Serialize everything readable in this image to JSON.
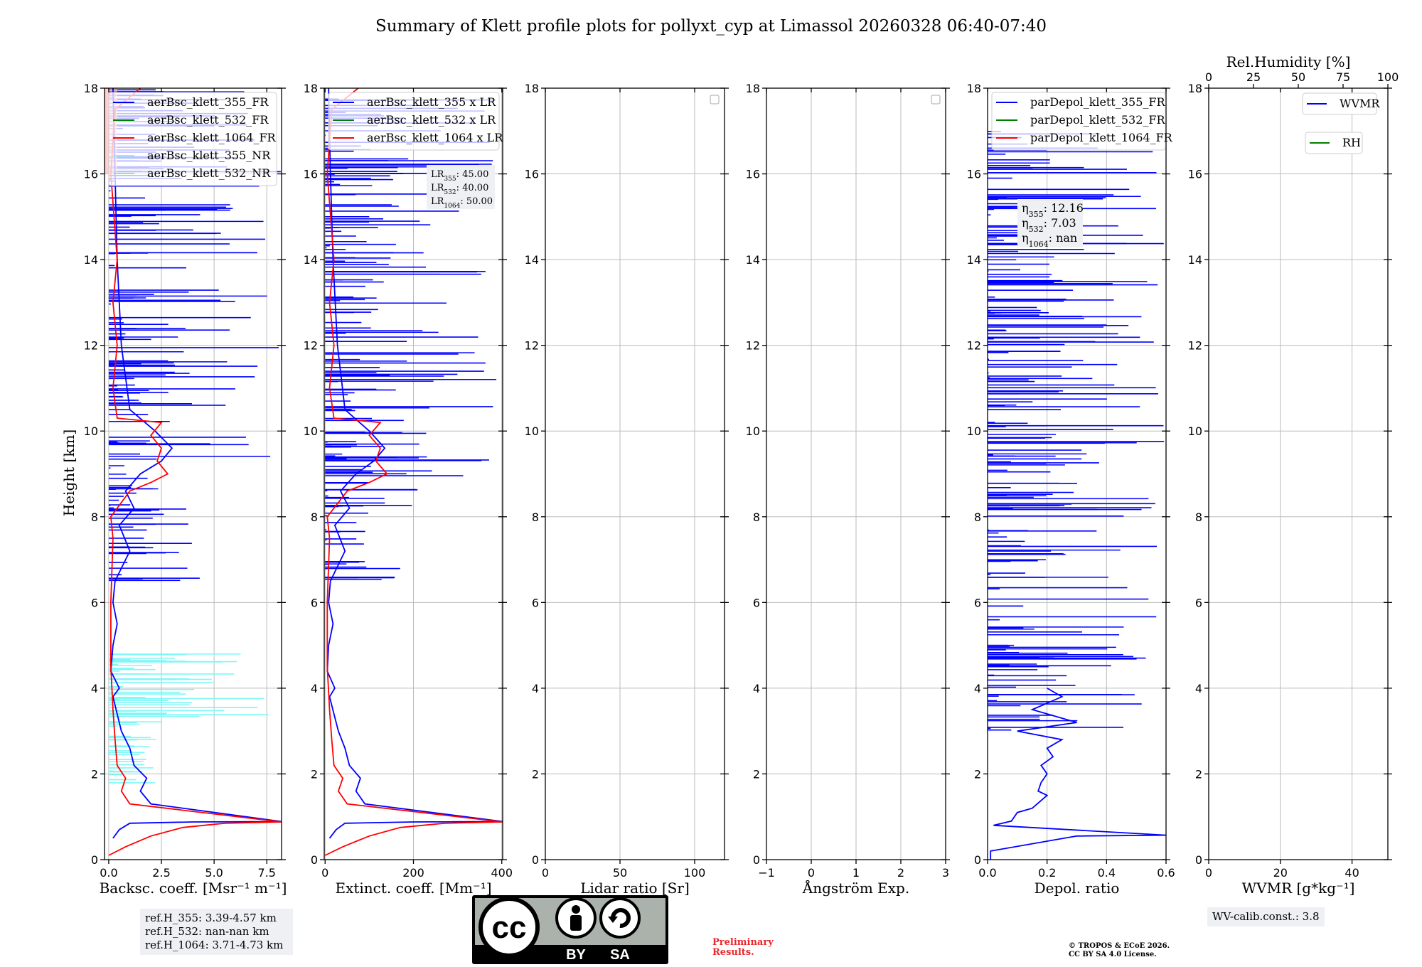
{
  "title": "Summary of Klett profile plots for pollyxt_cyp at Limassol 20260328 06:40-07:40",
  "colors": {
    "blue": "#0000ff",
    "green": "#008000",
    "red": "#ff0000",
    "cyan": "#7ff7f7",
    "lightgreen": "#90ee90"
  },
  "chart_data": [
    {
      "type": "line",
      "name": "backscatter",
      "xlabel": "Backsc. coeff. [Msr⁻¹ m⁻¹]",
      "ylabel": "Height [km]",
      "xlim": [
        -0.2,
        8.2
      ],
      "ylim": [
        0,
        18
      ],
      "xticks": [
        0,
        2.5,
        5,
        7.5
      ],
      "xticklabels": [
        "0.0",
        "2.5",
        "5.0",
        "7.5"
      ],
      "yticks": [
        0,
        2,
        4,
        6,
        8,
        10,
        12,
        14,
        16,
        18
      ],
      "legend": [
        "aerBsc_klett_355_FR",
        "aerBsc_klett_532_FR",
        "aerBsc_klett_1064_FR",
        "aerBsc_klett_355_NR",
        "aerBsc_klett_532_NR"
      ],
      "series": [
        {
          "name": "aerBsc_klett_355_FR",
          "color": "blue",
          "points": [
            [
              0.2,
              0.5
            ],
            [
              0.5,
              0.7
            ],
            [
              1.0,
              0.85
            ],
            [
              4.0,
              0.88
            ],
            [
              8.2,
              0.89
            ],
            [
              2.0,
              1.3
            ],
            [
              1.5,
              1.6
            ],
            [
              1.8,
              1.9
            ],
            [
              1.2,
              2.2
            ],
            [
              1.0,
              2.6
            ],
            [
              0.6,
              3.0
            ],
            [
              0.4,
              3.4
            ],
            [
              0.2,
              3.8
            ],
            [
              0.5,
              4.0
            ],
            [
              0.1,
              4.4
            ],
            [
              0.2,
              5.0
            ],
            [
              0.4,
              5.5
            ],
            [
              0.2,
              6.0
            ],
            [
              0.3,
              6.5
            ],
            [
              1.0,
              7.2
            ],
            [
              0.5,
              7.8
            ],
            [
              1.2,
              8.2
            ],
            [
              0.8,
              8.6
            ],
            [
              1.5,
              9.0
            ],
            [
              2.5,
              9.3
            ],
            [
              3.0,
              9.6
            ],
            [
              2.2,
              10.0
            ],
            [
              1.0,
              10.5
            ],
            [
              0.6,
              12.0
            ],
            [
              0.4,
              14.0
            ],
            [
              0.3,
              16.0
            ],
            [
              0.2,
              18.0
            ]
          ]
        },
        {
          "name": "aerBsc_klett_1064_FR",
          "color": "red",
          "points": [
            [
              0.0,
              0.1
            ],
            [
              0.8,
              0.3
            ],
            [
              2.0,
              0.55
            ],
            [
              3.5,
              0.75
            ],
            [
              5.5,
              0.85
            ],
            [
              8.2,
              0.88
            ],
            [
              1.0,
              1.3
            ],
            [
              0.6,
              1.6
            ],
            [
              0.8,
              1.9
            ],
            [
              0.4,
              2.2
            ],
            [
              0.3,
              2.8
            ],
            [
              0.2,
              3.5
            ],
            [
              0.1,
              4.5
            ],
            [
              0.1,
              6.0
            ],
            [
              0.2,
              7.5
            ],
            [
              0.1,
              8.0
            ],
            [
              1.0,
              8.6
            ],
            [
              2.0,
              8.8
            ],
            [
              2.8,
              9.0
            ],
            [
              2.3,
              9.3
            ],
            [
              2.5,
              9.6
            ],
            [
              2.0,
              9.9
            ],
            [
              2.5,
              10.2
            ],
            [
              0.4,
              10.3
            ],
            [
              0.2,
              11.0
            ],
            [
              0.4,
              12.0
            ],
            [
              0.2,
              13.0
            ],
            [
              0.4,
              14.0
            ],
            [
              0.1,
              16.0
            ],
            [
              0.3,
              17.5
            ],
            [
              1.5,
              18.0
            ]
          ]
        }
      ]
    },
    {
      "type": "line",
      "name": "extinction",
      "xlabel": "Extinct. coeff. [Mm⁻¹]",
      "xlim": [
        -2,
        402
      ],
      "ylim": [
        0,
        18
      ],
      "xticks": [
        0,
        200,
        400
      ],
      "xticklabels": [
        "0",
        "200",
        "400"
      ],
      "yticks": [
        0,
        2,
        4,
        6,
        8,
        10,
        12,
        14,
        16,
        18
      ],
      "legend": [
        "aerBsc_klett_355 x LR",
        "aerBsc_klett_532 x LR",
        "aerBsc_klett_1064 x LR"
      ],
      "lidar_ratios": [
        {
          "label": "LR",
          "sub": "355",
          "value": ": 45.00"
        },
        {
          "label": "LR",
          "sub": "532",
          "value": ": 40.00"
        },
        {
          "label": "LR",
          "sub": "1064",
          "value": ": 50.00"
        }
      ],
      "series": [
        {
          "name": "aerBsc_klett_355 x LR",
          "color": "blue",
          "points": [
            [
              10,
              0.5
            ],
            [
              25,
              0.7
            ],
            [
              45,
              0.85
            ],
            [
              200,
              0.88
            ],
            [
              402,
              0.89
            ],
            [
              90,
              1.3
            ],
            [
              70,
              1.6
            ],
            [
              80,
              1.9
            ],
            [
              55,
              2.2
            ],
            [
              45,
              2.6
            ],
            [
              30,
              3.0
            ],
            [
              20,
              3.4
            ],
            [
              10,
              3.8
            ],
            [
              22,
              4.0
            ],
            [
              5,
              4.4
            ],
            [
              8,
              5.0
            ],
            [
              18,
              5.5
            ],
            [
              8,
              6.0
            ],
            [
              12,
              6.5
            ],
            [
              45,
              7.2
            ],
            [
              22,
              7.8
            ],
            [
              55,
              8.2
            ],
            [
              35,
              8.6
            ],
            [
              70,
              9.0
            ],
            [
              110,
              9.3
            ],
            [
              135,
              9.6
            ],
            [
              100,
              10.0
            ],
            [
              45,
              10.5
            ],
            [
              28,
              12.0
            ],
            [
              18,
              14.0
            ],
            [
              12,
              16.0
            ],
            [
              8,
              18.0
            ]
          ]
        },
        {
          "name": "aerBsc_klett_1064 x LR",
          "color": "red",
          "points": [
            [
              0,
              0.1
            ],
            [
              40,
              0.3
            ],
            [
              100,
              0.55
            ],
            [
              170,
              0.75
            ],
            [
              270,
              0.85
            ],
            [
              402,
              0.88
            ],
            [
              50,
              1.3
            ],
            [
              30,
              1.6
            ],
            [
              40,
              1.9
            ],
            [
              20,
              2.2
            ],
            [
              15,
              2.8
            ],
            [
              10,
              3.5
            ],
            [
              5,
              4.5
            ],
            [
              5,
              6.0
            ],
            [
              10,
              7.5
            ],
            [
              5,
              8.0
            ],
            [
              50,
              8.6
            ],
            [
              100,
              8.8
            ],
            [
              140,
              9.0
            ],
            [
              115,
              9.3
            ],
            [
              125,
              9.6
            ],
            [
              100,
              9.9
            ],
            [
              125,
              10.2
            ],
            [
              20,
              10.3
            ],
            [
              10,
              11.0
            ],
            [
              20,
              12.0
            ],
            [
              10,
              13.0
            ],
            [
              20,
              14.0
            ],
            [
              5,
              16.0
            ],
            [
              15,
              17.5
            ],
            [
              75,
              18.0
            ]
          ]
        }
      ]
    },
    {
      "type": "line",
      "name": "lidar-ratio",
      "xlabel": "Lidar ratio [Sr]",
      "xlim": [
        0,
        120
      ],
      "ylim": [
        0,
        18
      ],
      "xticks": [
        0,
        50,
        100
      ],
      "xticklabels": [
        "0",
        "50",
        "100"
      ],
      "yticks": [
        0,
        2,
        4,
        6,
        8,
        10,
        12,
        14,
        16,
        18
      ],
      "series": []
    },
    {
      "type": "line",
      "name": "angstrom",
      "xlabel": "Ångström Exp.",
      "xlim": [
        -1,
        3
      ],
      "ylim": [
        0,
        18
      ],
      "xticks": [
        -1,
        0,
        1,
        2,
        3
      ],
      "xticklabels": [
        "−1",
        "0",
        "1",
        "2",
        "3"
      ],
      "yticks": [
        0,
        2,
        4,
        6,
        8,
        10,
        12,
        14,
        16,
        18
      ],
      "series": []
    },
    {
      "type": "line",
      "name": "depolarization",
      "xlabel": "Depol. ratio",
      "xlim": [
        0,
        0.6
      ],
      "ylim": [
        0,
        18
      ],
      "xticks": [
        0,
        0.2,
        0.4,
        0.6
      ],
      "xticklabels": [
        "0.0",
        "0.2",
        "0.4",
        "0.6"
      ],
      "yticks": [
        0,
        2,
        4,
        6,
        8,
        10,
        12,
        14,
        16,
        18
      ],
      "legend": [
        "parDepol_klett_355_FR",
        "parDepol_klett_532_FR",
        "parDepol_klett_1064_FR"
      ],
      "eta": [
        {
          "label": "η",
          "sub": "355",
          "value": ": 12.16"
        },
        {
          "label": "η",
          "sub": "532",
          "value": ": 7.03"
        },
        {
          "label": "η",
          "sub": "1064",
          "value": ": nan"
        }
      ],
      "series": [
        {
          "name": "parDepol_klett_355_FR",
          "color": "blue",
          "points": [
            [
              0.01,
              0.0
            ],
            [
              0.01,
              0.2
            ],
            [
              0.3,
              0.55
            ],
            [
              0.6,
              0.57
            ],
            [
              0.02,
              0.8
            ],
            [
              0.08,
              0.9
            ],
            [
              0.1,
              1.1
            ],
            [
              0.15,
              1.2
            ],
            [
              0.2,
              1.5
            ],
            [
              0.17,
              1.6
            ],
            [
              0.18,
              1.8
            ],
            [
              0.2,
              2.0
            ],
            [
              0.18,
              2.2
            ],
            [
              0.22,
              2.4
            ],
            [
              0.2,
              2.6
            ],
            [
              0.25,
              2.8
            ],
            [
              0.1,
              3.0
            ],
            [
              0.3,
              3.2
            ],
            [
              0.15,
              3.5
            ],
            [
              0.25,
              3.8
            ],
            [
              0.2,
              4.0
            ]
          ]
        }
      ]
    },
    {
      "type": "line",
      "name": "wvmr",
      "xlabel": "WVMR [g*kg⁻¹]",
      "xlim": [
        0,
        50
      ],
      "ylim": [
        0,
        18
      ],
      "xticks": [
        0,
        20,
        40
      ],
      "xticklabels": [
        "0",
        "20",
        "40"
      ],
      "yticks": [
        0,
        2,
        4,
        6,
        8,
        10,
        12,
        14,
        16,
        18
      ],
      "top_xlabel": "Rel.Humidity [%]",
      "top_xlim": [
        0,
        100
      ],
      "top_xticks": [
        0,
        25,
        50,
        75,
        100
      ],
      "top_xticklabels": [
        "0",
        "25",
        "50",
        "75",
        "100"
      ],
      "legend": [
        "WVMR",
        "RH"
      ],
      "series": []
    }
  ],
  "info": {
    "refh": [
      "ref.H_355: 3.39-4.57 km",
      "ref.H_532: nan-nan km",
      "ref.H_1064: 3.71-4.73 km"
    ],
    "wv_calib": "WV-calib.const.: 3.8",
    "prelim": [
      "Preliminary",
      "Results."
    ],
    "copyright": [
      "© TROPOS & ECoE 2026.",
      "CC BY SA 4.0 License."
    ],
    "cc": {
      "main": "cc",
      "by": "BY",
      "sa": "SA"
    }
  }
}
